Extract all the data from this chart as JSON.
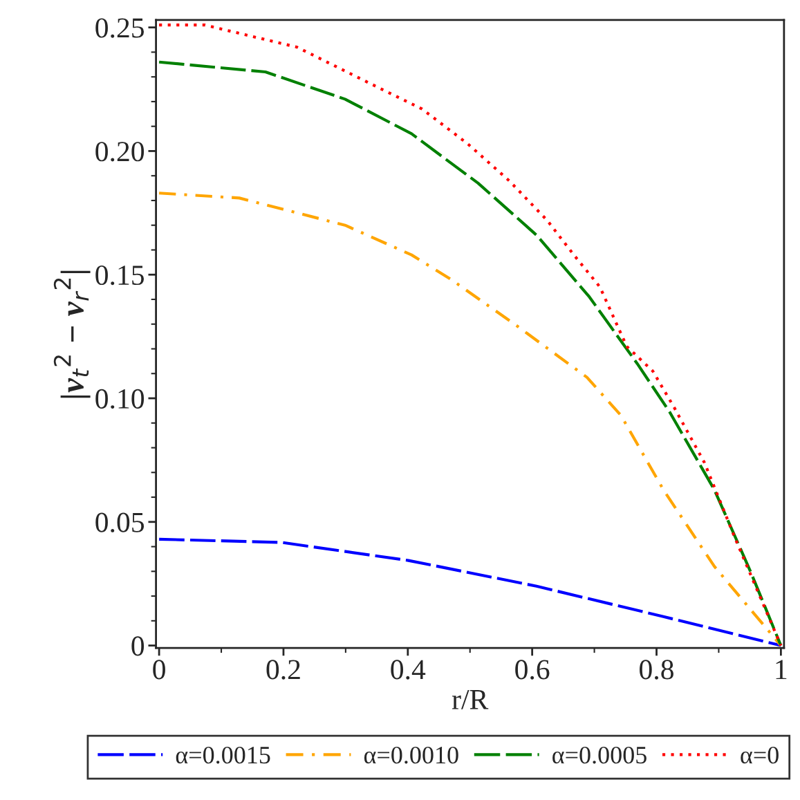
{
  "chart_data": {
    "type": "line",
    "xlabel": "r/R",
    "ylabel": "|v$_{t}$$^{2}$ − v$_{r}$$^{2}$|",
    "xlim": [
      -0.005,
      1.005
    ],
    "ylim": [
      -0.001,
      0.253
    ],
    "xticks": [
      0,
      0.2,
      0.4,
      0.6,
      0.8,
      1
    ],
    "yticks": [
      0,
      {
        "value": 0.05,
        "label": "0.05"
      },
      {
        "value": 0.1,
        "label": "0.10"
      },
      0.15,
      {
        "value": 0.2,
        "label": "0.20"
      },
      0.25
    ],
    "grid": false,
    "legend": "bottom",
    "series": [
      {
        "name": "α=0.0015",
        "color": "#0000ff",
        "line_style": "dashed",
        "x": [
          0,
          0.197,
          0.401,
          0.607,
          0.811,
          1
        ],
        "values": [
          0.043,
          0.0417,
          0.0344,
          0.024,
          0.0117,
          0
        ]
      },
      {
        "name": "α=0.0010",
        "color": "#ffa500",
        "line_style": "dashdot",
        "x": [
          0,
          0.129,
          0.299,
          0.406,
          0.47,
          0.577,
          0.688,
          0.743,
          0.811,
          0.893,
          1
        ],
        "values": [
          0.183,
          0.181,
          0.17,
          0.158,
          0.148,
          0.129,
          0.1085,
          0.093,
          0.063,
          0.032,
          0
        ]
      },
      {
        "name": "α=0.0005",
        "color": "#008000",
        "line_style": "dashed",
        "x": [
          0,
          0.171,
          0.299,
          0.406,
          0.513,
          0.607,
          0.692,
          0.769,
          0.821,
          0.893,
          0.951,
          1
        ],
        "values": [
          0.236,
          0.232,
          0.221,
          0.207,
          0.187,
          0.166,
          0.141,
          0.114,
          0.0945,
          0.063,
          0.03,
          0
        ]
      },
      {
        "name": "α=0",
        "color": "#ff0000",
        "line_style": "dotted",
        "x": [
          0,
          0.073,
          0.222,
          0.35,
          0.423,
          0.496,
          0.563,
          0.624,
          0.667,
          0.709,
          0.752,
          0.794,
          0.829,
          0.877,
          0.927,
          1
        ],
        "values": [
          0.251,
          0.251,
          0.242,
          0.226,
          0.217,
          0.203,
          0.188,
          0.172,
          0.158,
          0.145,
          0.121,
          0.111,
          0.096,
          0.074,
          0.043,
          0
        ]
      }
    ]
  }
}
